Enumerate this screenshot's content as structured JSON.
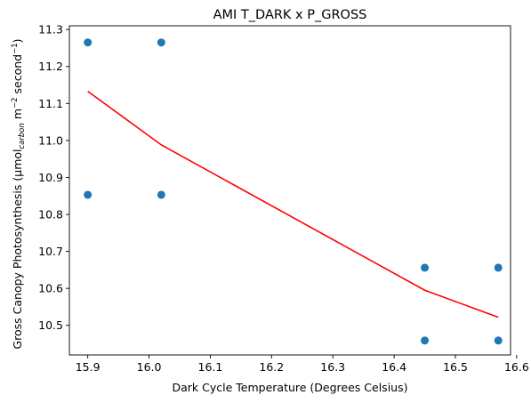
{
  "chart_data": {
    "type": "scatter",
    "title": "AMI T_DARK x P_GROSS",
    "xlabel": "Dark Cycle Temperature (Degrees Celsius)",
    "ylabel": {
      "main": "Gross Canopy Photosynthesis (µmol",
      "sub": "carbon",
      "unit_pre": " m",
      "unit_exp1": "−2",
      "unit_mid": " second",
      "unit_exp2": "−1",
      "close": ")"
    },
    "xlim": [
      15.87,
      16.59
    ],
    "ylim": [
      10.42,
      11.31
    ],
    "xticks": [
      15.9,
      16.0,
      16.1,
      16.2,
      16.3,
      16.4,
      16.5,
      16.6
    ],
    "xtick_labels": [
      "15.9",
      "16.0",
      "16.1",
      "16.2",
      "16.3",
      "16.4",
      "16.5",
      "16.6"
    ],
    "yticks": [
      10.5,
      10.6,
      10.7,
      10.8,
      10.9,
      11.0,
      11.1,
      11.2,
      11.3
    ],
    "ytick_labels": [
      "10.5",
      "10.6",
      "10.7",
      "10.8",
      "10.9",
      "11.0",
      "11.1",
      "11.2",
      "11.3"
    ],
    "grid": false,
    "scatter": {
      "color": "#1f77b4",
      "points": [
        {
          "x": 15.9,
          "y": 11.265
        },
        {
          "x": 15.9,
          "y": 10.853
        },
        {
          "x": 16.02,
          "y": 11.265
        },
        {
          "x": 16.02,
          "y": 10.853
        },
        {
          "x": 16.45,
          "y": 10.656
        },
        {
          "x": 16.45,
          "y": 10.459
        },
        {
          "x": 16.57,
          "y": 10.656
        },
        {
          "x": 16.57,
          "y": 10.459
        }
      ]
    },
    "trend_line": {
      "color": "#ff0000",
      "points": [
        {
          "x": 15.9,
          "y": 11.133
        },
        {
          "x": 16.02,
          "y": 10.988
        },
        {
          "x": 16.45,
          "y": 10.595
        },
        {
          "x": 16.57,
          "y": 10.522
        }
      ]
    }
  }
}
